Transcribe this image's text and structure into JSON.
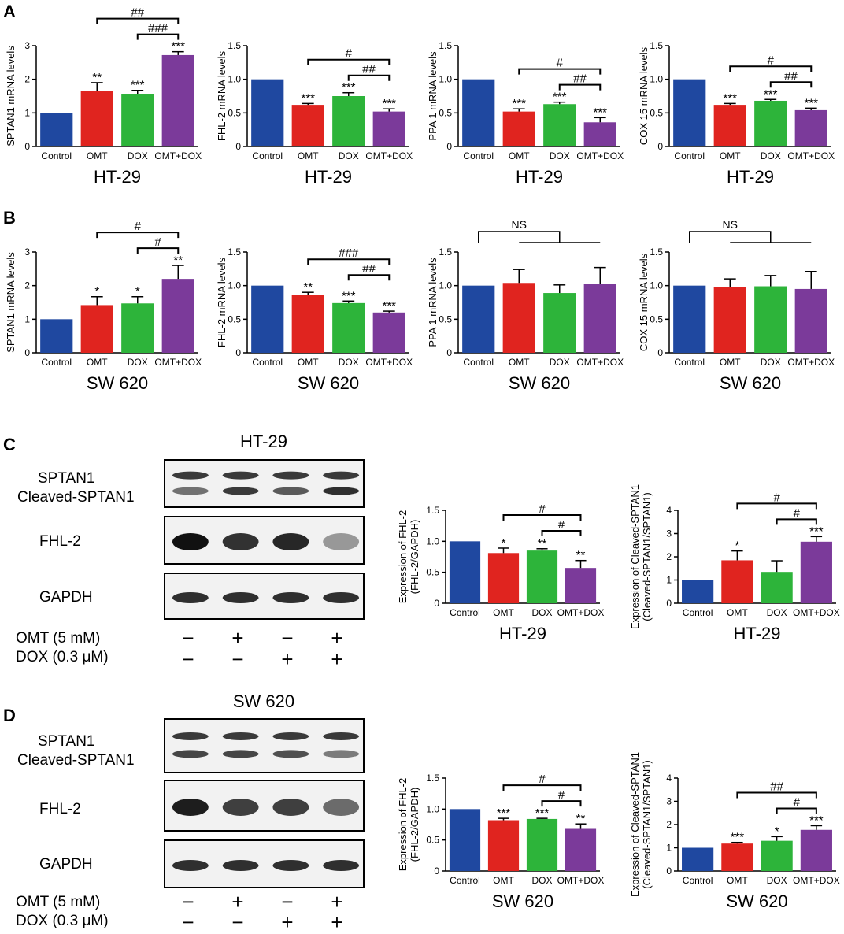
{
  "panel_labels": [
    "A",
    "B",
    "C",
    "D"
  ],
  "colors": {
    "control": "#1f48a0",
    "omt": "#e0241f",
    "dox": "#2db43a",
    "combo": "#7b3a9a"
  },
  "chart_data": [
    {
      "type": "bar",
      "categories": [
        "Control",
        "OMT",
        "DOX",
        "OMT+DOX"
      ],
      "values": [
        1.0,
        1.65,
        1.57,
        2.72
      ],
      "errors": [
        0,
        0.25,
        0.1,
        0.1
      ],
      "sig": [
        "",
        "**",
        "***",
        "***"
      ],
      "ylabel": "SPTAN1 mRNA levels",
      "xlabel": "HT-29",
      "ylim": [
        0,
        3
      ],
      "yticks": [
        "0",
        "1",
        "2",
        "3"
      ],
      "brackets": [
        {
          "from": 1,
          "to": 3,
          "label": "##"
        },
        {
          "from": 2,
          "to": 3,
          "label": "###"
        }
      ]
    },
    {
      "type": "bar",
      "categories": [
        "Control",
        "OMT",
        "DOX",
        "OMT+DOX"
      ],
      "values": [
        1.0,
        0.62,
        0.75,
        0.52
      ],
      "errors": [
        0,
        0.02,
        0.05,
        0.04
      ],
      "sig": [
        "",
        "***",
        "***",
        "***"
      ],
      "ylabel": "FHL-2 mRNA levels",
      "xlabel": "HT-29",
      "ylim": [
        0,
        1.5
      ],
      "yticks": [
        "0",
        "0.5",
        "1.0",
        "1.5"
      ],
      "brackets": [
        {
          "from": 1,
          "to": 3,
          "label": "#"
        },
        {
          "from": 2,
          "to": 3,
          "label": "##"
        }
      ]
    },
    {
      "type": "bar",
      "categories": [
        "Control",
        "OMT",
        "DOX",
        "OMT+DOX"
      ],
      "values": [
        1.0,
        0.52,
        0.63,
        0.36
      ],
      "errors": [
        0,
        0.04,
        0.03,
        0.07
      ],
      "sig": [
        "",
        "***",
        "***",
        "***"
      ],
      "ylabel": "PPA 1 mRNA levels",
      "xlabel": "HT-29",
      "ylim": [
        0,
        1.5
      ],
      "yticks": [
        "0",
        "0.5",
        "1.0",
        "1.5"
      ],
      "brackets": [
        {
          "from": 1,
          "to": 3,
          "label": "#"
        },
        {
          "from": 2,
          "to": 3,
          "label": "##"
        }
      ]
    },
    {
      "type": "bar",
      "categories": [
        "Control",
        "OMT",
        "DOX",
        "OMT+DOX"
      ],
      "values": [
        1.0,
        0.62,
        0.68,
        0.54
      ],
      "errors": [
        0,
        0.02,
        0.02,
        0.03
      ],
      "sig": [
        "",
        "***",
        "***",
        "***"
      ],
      "ylabel": "COX 15 mRNA levels",
      "xlabel": "HT-29",
      "ylim": [
        0,
        1.5
      ],
      "yticks": [
        "0",
        "0.5",
        "1.0",
        "1.5"
      ],
      "brackets": [
        {
          "from": 1,
          "to": 3,
          "label": "#"
        },
        {
          "from": 2,
          "to": 3,
          "label": "##"
        }
      ]
    },
    {
      "type": "bar",
      "categories": [
        "Control",
        "OMT",
        "DOX",
        "OMT+DOX"
      ],
      "values": [
        1.0,
        1.42,
        1.47,
        2.2
      ],
      "errors": [
        0,
        0.25,
        0.2,
        0.4
      ],
      "sig": [
        "",
        "*",
        "*",
        "**"
      ],
      "ylabel": "SPTAN1 mRNA levels",
      "xlabel": "SW 620",
      "ylim": [
        0,
        3
      ],
      "yticks": [
        "0",
        "1",
        "2",
        "3"
      ],
      "brackets": [
        {
          "from": 1,
          "to": 3,
          "label": "#"
        },
        {
          "from": 2,
          "to": 3,
          "label": "#"
        }
      ]
    },
    {
      "type": "bar",
      "categories": [
        "Control",
        "OMT",
        "DOX",
        "OMT+DOX"
      ],
      "values": [
        1.0,
        0.86,
        0.74,
        0.6
      ],
      "errors": [
        0,
        0.04,
        0.03,
        0.02
      ],
      "sig": [
        "",
        "**",
        "***",
        "***"
      ],
      "ylabel": "FHL-2 mRNA levels",
      "xlabel": "SW 620",
      "ylim": [
        0,
        1.5
      ],
      "yticks": [
        "0",
        "0.5",
        "1.0",
        "1.5"
      ],
      "brackets": [
        {
          "from": 1,
          "to": 3,
          "label": "###"
        },
        {
          "from": 2,
          "to": 3,
          "label": "##"
        }
      ]
    },
    {
      "type": "bar",
      "categories": [
        "Control",
        "OMT",
        "DOX",
        "OMT+DOX"
      ],
      "values": [
        1.0,
        1.04,
        0.89,
        1.02
      ],
      "errors": [
        0,
        0.2,
        0.12,
        0.25
      ],
      "sig": [
        "",
        "",
        "",
        ""
      ],
      "ylabel": "PPA 1 mRNA levels",
      "xlabel": "SW 620",
      "ylim": [
        0,
        1.5
      ],
      "yticks": [
        "0",
        "0.5",
        "1.0",
        "1.5"
      ],
      "ns": {
        "label": "NS",
        "from": 0,
        "to": 2,
        "bar_from": 1,
        "bar_to": 3
      }
    },
    {
      "type": "bar",
      "categories": [
        "Control",
        "OMT",
        "DOX",
        "OMT+DOX"
      ],
      "values": [
        1.0,
        0.98,
        0.99,
        0.95
      ],
      "errors": [
        0,
        0.12,
        0.16,
        0.26
      ],
      "sig": [
        "",
        "",
        "",
        ""
      ],
      "ylabel": "COX 15 mRNA levels",
      "xlabel": "SW 620",
      "ylim": [
        0,
        1.5
      ],
      "yticks": [
        "0",
        "0.5",
        "1.0",
        "1.5"
      ],
      "ns": {
        "label": "NS",
        "from": 0,
        "to": 2,
        "bar_from": 1,
        "bar_to": 3
      }
    },
    {
      "type": "bar",
      "categories": [
        "Control",
        "OMT",
        "DOX",
        "OMT+DOX"
      ],
      "values": [
        1.0,
        0.81,
        0.85,
        0.57
      ],
      "errors": [
        0,
        0.08,
        0.03,
        0.12
      ],
      "sig": [
        "",
        "*",
        "**",
        "**"
      ],
      "ylabel": "Expression of FHL-2",
      "ylabel2": "(FHL-2/GAPDH)",
      "xlabel": "HT-29",
      "ylim": [
        0,
        1.5
      ],
      "yticks": [
        "0",
        "0.5",
        "1.0",
        "1.5"
      ],
      "brackets": [
        {
          "from": 1,
          "to": 3,
          "label": "#"
        },
        {
          "from": 2,
          "to": 3,
          "label": "#"
        }
      ]
    },
    {
      "type": "bar",
      "categories": [
        "Control",
        "OMT",
        "DOX",
        "OMT+DOX"
      ],
      "values": [
        1.0,
        1.85,
        1.35,
        2.65
      ],
      "errors": [
        0,
        0.4,
        0.48,
        0.22
      ],
      "sig": [
        "",
        "*",
        "",
        "***"
      ],
      "ylabel": "Expression of Cleaved-SPTAN1",
      "ylabel2": "(Cleaved-SPTAN1/SPTAN1)",
      "xlabel": "HT-29",
      "ylim": [
        0,
        4
      ],
      "yticks": [
        "0",
        "1",
        "2",
        "3",
        "4"
      ],
      "brackets": [
        {
          "from": 1,
          "to": 3,
          "label": "#"
        },
        {
          "from": 2,
          "to": 3,
          "label": "#"
        }
      ]
    },
    {
      "type": "bar",
      "categories": [
        "Control",
        "OMT",
        "DOX",
        "OMT+DOX"
      ],
      "values": [
        1.0,
        0.82,
        0.84,
        0.68
      ],
      "errors": [
        0,
        0.03,
        0.01,
        0.08
      ],
      "sig": [
        "",
        "***",
        "***",
        "**"
      ],
      "ylabel": "Expression of FHL-2",
      "ylabel2": "(FHL-2/GAPDH)",
      "xlabel": "SW 620",
      "ylim": [
        0,
        1.5
      ],
      "yticks": [
        "0",
        "0.5",
        "1.0",
        "1.5"
      ],
      "brackets": [
        {
          "from": 1,
          "to": 3,
          "label": "#"
        },
        {
          "from": 2,
          "to": 3,
          "label": "#"
        }
      ]
    },
    {
      "type": "bar",
      "categories": [
        "Control",
        "OMT",
        "DOX",
        "OMT+DOX"
      ],
      "values": [
        1.0,
        1.18,
        1.3,
        1.77
      ],
      "errors": [
        0,
        0.05,
        0.18,
        0.18
      ],
      "sig": [
        "",
        "***",
        "*",
        "***"
      ],
      "ylabel": "Expression of Cleaved-SPTAN1",
      "ylabel2": "(Cleaved-SPTAN1/SPTAN1)",
      "xlabel": "SW 620",
      "ylim": [
        0,
        4
      ],
      "yticks": [
        "0",
        "1",
        "2",
        "3",
        "4"
      ],
      "brackets": [
        {
          "from": 1,
          "to": 3,
          "label": "##"
        },
        {
          "from": 2,
          "to": 3,
          "label": "#"
        }
      ]
    }
  ],
  "western_blots": [
    {
      "title": "HT-29",
      "row1": "SPTAN1",
      "row1b": "Cleaved-SPTAN1",
      "row2": "FHL-2",
      "row3": "GAPDH",
      "fhl2_intensity": [
        1.0,
        0.85,
        0.9,
        0.4
      ],
      "cleaved_intensity": [
        0.6,
        0.85,
        0.7,
        0.9
      ]
    },
    {
      "title": "SW 620",
      "row1": "SPTAN1",
      "row1b": "Cleaved-SPTAN1",
      "row2": "FHL-2",
      "row3": "GAPDH",
      "fhl2_intensity": [
        0.95,
        0.8,
        0.8,
        0.6
      ],
      "cleaved_intensity": [
        0.8,
        0.8,
        0.75,
        0.55
      ]
    }
  ],
  "treatment": {
    "omt_label": "OMT (5 mM)",
    "dox_label": "DOX (0.3 μM)",
    "omt_signs": [
      "−",
      "+",
      "−",
      "+"
    ],
    "dox_signs": [
      "−",
      "−",
      "+",
      "+"
    ]
  }
}
